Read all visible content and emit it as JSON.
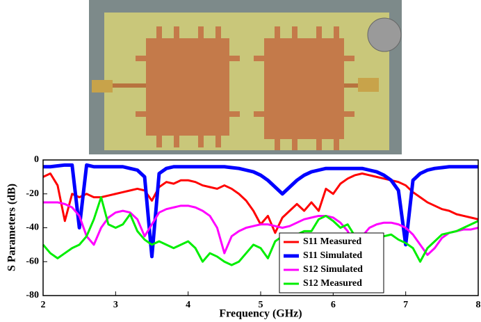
{
  "chart_data": {
    "type": "line",
    "x_label": "Frequency (GHz)",
    "y_label": "S Parameters (dB)",
    "xlim": [
      2,
      8
    ],
    "ylim": [
      -80,
      0
    ],
    "xticks": [
      2,
      3,
      4,
      5,
      6,
      7,
      8
    ],
    "yticks": [
      -80,
      -60,
      -40,
      -20,
      0
    ],
    "legend": "lower right",
    "x": [
      2.0,
      2.1,
      2.2,
      2.3,
      2.4,
      2.5,
      2.6,
      2.7,
      2.8,
      2.9,
      3.0,
      3.1,
      3.2,
      3.3,
      3.4,
      3.5,
      3.6,
      3.7,
      3.8,
      3.9,
      4.0,
      4.1,
      4.2,
      4.3,
      4.4,
      4.5,
      4.6,
      4.7,
      4.8,
      4.9,
      5.0,
      5.1,
      5.2,
      5.3,
      5.4,
      5.5,
      5.6,
      5.7,
      5.8,
      5.9,
      6.0,
      6.1,
      6.2,
      6.3,
      6.4,
      6.5,
      6.6,
      6.7,
      6.8,
      6.9,
      7.0,
      7.1,
      7.2,
      7.3,
      7.4,
      7.5,
      7.6,
      7.7,
      7.8,
      7.9,
      8.0
    ],
    "series": [
      {
        "name": "S11 Measured",
        "color": "#ff0000",
        "width": 3,
        "values": [
          -10,
          -8,
          -15,
          -36,
          -20,
          -22,
          -20,
          -22,
          -22,
          -21,
          -20,
          -19,
          -18,
          -17,
          -18,
          -24,
          -16,
          -13,
          -14,
          -12,
          -12,
          -13,
          -15,
          -16,
          -17,
          -15,
          -17,
          -20,
          -24,
          -30,
          -38,
          -33,
          -43,
          -34,
          -30,
          -26,
          -30,
          -25,
          -30,
          -17,
          -20,
          -14,
          -11,
          -9,
          -8,
          -9,
          -10,
          -11,
          -12,
          -13,
          -15,
          -19,
          -22,
          -25,
          -27,
          -29,
          -30,
          -32,
          -33,
          -34,
          -35
        ]
      },
      {
        "name": "S11 Simulated",
        "color": "#0000ff",
        "width": 5,
        "values": [
          -4,
          -4,
          -3.5,
          -3,
          -3,
          -40,
          -3,
          -4,
          -4,
          -4,
          -4,
          -4,
          -5,
          -6,
          -10,
          -57,
          -8,
          -5,
          -4,
          -4,
          -4,
          -4,
          -4,
          -4,
          -4,
          -4,
          -4.5,
          -5,
          -6,
          -7,
          -9,
          -12,
          -16,
          -20,
          -16,
          -12,
          -9,
          -7,
          -6,
          -5,
          -5,
          -5,
          -5,
          -5,
          -5,
          -6,
          -7,
          -9,
          -12,
          -18,
          -50,
          -12,
          -8,
          -6,
          -5,
          -4.5,
          -4,
          -4,
          -4,
          -4,
          -4
        ]
      },
      {
        "name": "S12 Simulated",
        "color": "#ff00ff",
        "width": 3,
        "values": [
          -25,
          -25,
          -25,
          -26,
          -28,
          -33,
          -45,
          -50,
          -40,
          -34,
          -31,
          -30,
          -31,
          -35,
          -45,
          -38,
          -31,
          -29,
          -28,
          -27,
          -27,
          -28,
          -30,
          -33,
          -40,
          -55,
          -45,
          -42,
          -40,
          -39,
          -38,
          -38,
          -39,
          -40,
          -39,
          -37,
          -35,
          -34,
          -33,
          -33,
          -34,
          -37,
          -42,
          -52,
          -45,
          -40,
          -38,
          -37,
          -37,
          -38,
          -40,
          -44,
          -50,
          -56,
          -52,
          -46,
          -43,
          -42,
          -41,
          -41,
          -40
        ]
      },
      {
        "name": "S12 Measured",
        "color": "#00ee00",
        "width": 3,
        "values": [
          -50,
          -55,
          -58,
          -55,
          -52,
          -50,
          -45,
          -35,
          -22,
          -38,
          -40,
          -38,
          -32,
          -42,
          -47,
          -50,
          -48,
          -50,
          -52,
          -50,
          -48,
          -52,
          -60,
          -55,
          -57,
          -60,
          -62,
          -60,
          -55,
          -50,
          -52,
          -58,
          -48,
          -45,
          -47,
          -44,
          -42,
          -42,
          -35,
          -33,
          -36,
          -40,
          -38,
          -45,
          -48,
          -45,
          -44,
          -45,
          -44,
          -47,
          -49,
          -52,
          -60,
          -52,
          -48,
          -44,
          -43,
          -42,
          -40,
          -38,
          -36
        ]
      }
    ]
  }
}
